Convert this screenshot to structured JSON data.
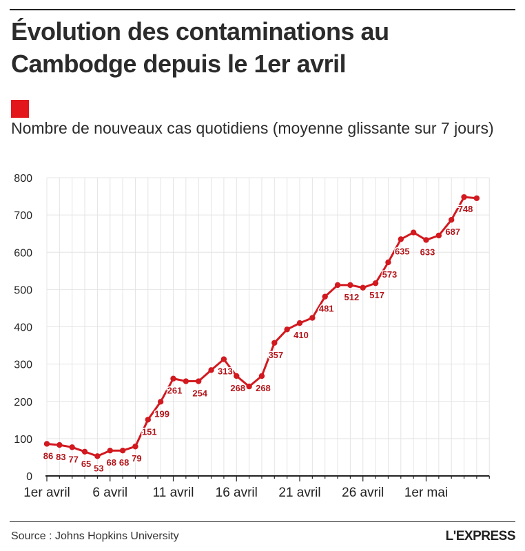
{
  "title": "Évolution des contaminations au Cambodge depuis le 1er avril",
  "legend": {
    "label": "Nombre de nouveaux cas quotidiens (moyenne glissante sur 7 jours)",
    "color": "#e3161c"
  },
  "source": "Source : Johns Hopkins University",
  "logo": "L'EXPRESS",
  "colors": {
    "series": "#d2191f",
    "grid": "#e4e4e4",
    "axis": "#222222",
    "label": "#b3161b"
  },
  "chart_data": {
    "type": "line",
    "title": "Évolution des contaminations au Cambodge depuis le 1er avril",
    "xlabel": "",
    "ylabel": "Nombre de nouveaux cas quotidiens (moyenne glissante sur 7 jours)",
    "ylim": [
      0,
      800
    ],
    "yticks": [
      0,
      100,
      200,
      300,
      400,
      500,
      600,
      700,
      800
    ],
    "xticks": [
      {
        "index": 0,
        "label": "1er avril"
      },
      {
        "index": 5,
        "label": "6 avril"
      },
      {
        "index": 10,
        "label": "11 avril"
      },
      {
        "index": 15,
        "label": "16 avril"
      },
      {
        "index": 20,
        "label": "21 avril"
      },
      {
        "index": 25,
        "label": "26 avril"
      },
      {
        "index": 30,
        "label": "1er mai"
      }
    ],
    "grid": true,
    "series": [
      {
        "name": "Nombre de nouveaux cas quotidiens (moyenne glissante sur 7 jours)",
        "values": [
          86,
          83,
          77,
          65,
          53,
          68,
          68,
          79,
          151,
          199,
          261,
          254,
          254,
          284,
          313,
          268,
          240,
          268,
          357,
          393,
          410,
          424,
          481,
          512,
          512,
          505,
          517,
          573,
          635,
          653,
          633,
          645,
          687,
          748,
          745
        ]
      }
    ],
    "data_labels": [
      {
        "index": 0,
        "text": "86"
      },
      {
        "index": 1,
        "text": "83"
      },
      {
        "index": 2,
        "text": "77"
      },
      {
        "index": 3,
        "text": "65"
      },
      {
        "index": 4,
        "text": "53"
      },
      {
        "index": 5,
        "text": "68"
      },
      {
        "index": 6,
        "text": "68"
      },
      {
        "index": 7,
        "text": "79"
      },
      {
        "index": 8,
        "text": "151"
      },
      {
        "index": 9,
        "text": "199"
      },
      {
        "index": 10,
        "text": "261"
      },
      {
        "index": 12,
        "text": "254"
      },
      {
        "index": 14,
        "text": "313"
      },
      {
        "index": 15,
        "text": "268"
      },
      {
        "index": 17,
        "text": "268"
      },
      {
        "index": 18,
        "text": "357"
      },
      {
        "index": 20,
        "text": "410"
      },
      {
        "index": 22,
        "text": "481"
      },
      {
        "index": 24,
        "text": "512"
      },
      {
        "index": 26,
        "text": "517"
      },
      {
        "index": 27,
        "text": "573"
      },
      {
        "index": 28,
        "text": "635"
      },
      {
        "index": 30,
        "text": "633"
      },
      {
        "index": 32,
        "text": "687"
      },
      {
        "index": 33,
        "text": "748"
      }
    ]
  }
}
